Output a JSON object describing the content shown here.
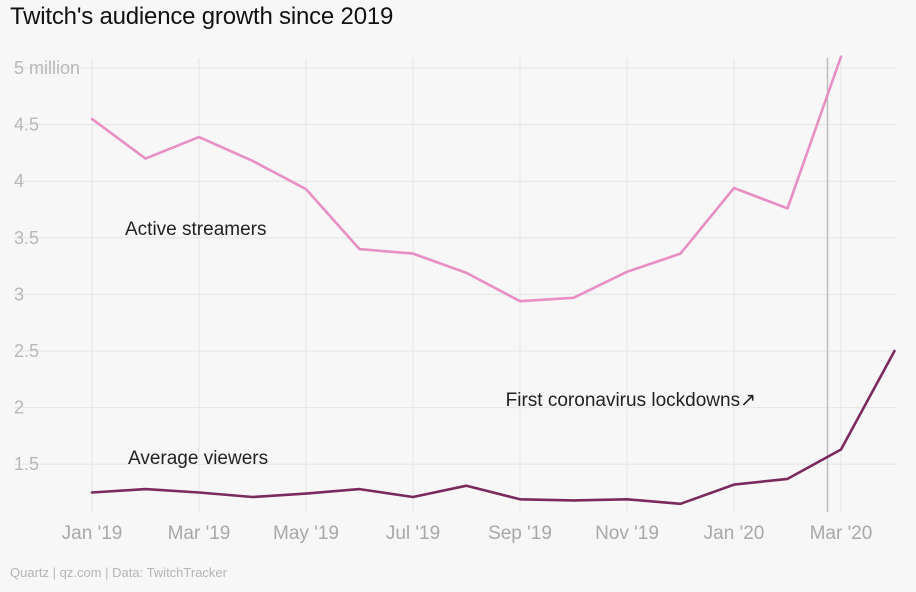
{
  "title": "Twitch's audience growth since 2019",
  "source": "Quartz | qz.com | Data: TwitchTracker",
  "colors": {
    "active_streamers": "#e88fc4",
    "average_viewers": "#7a2a5e",
    "grid": "#e6e6e6",
    "lockdown_line": "#bdbdbd"
  },
  "chart_data": {
    "type": "line",
    "x": [
      "Jan 2019",
      "Feb 2019",
      "Mar 2019",
      "Apr 2019",
      "May 2019",
      "Jun 2019",
      "Jul 2019",
      "Aug 2019",
      "Sep 2019",
      "Oct 2019",
      "Nov 2019",
      "Dec 2019",
      "Jan 2020",
      "Feb 2020",
      "Mar 2020",
      "Apr 2020"
    ],
    "x_ticks": [
      "Jan '19",
      "Mar '19",
      "May '19",
      "Jul '19",
      "Sep '19",
      "Nov '19",
      "Jan '20",
      "Mar '20"
    ],
    "y_ticks": [
      "5 million",
      "4.5",
      "4",
      "3.5",
      "3",
      "2.5",
      "2",
      "1.5"
    ],
    "ylim": [
      1.07,
      5.2
    ],
    "grid": true,
    "series": [
      {
        "name": "Active streamers",
        "values": [
          4.55,
          4.2,
          4.39,
          4.18,
          3.93,
          3.4,
          3.36,
          3.19,
          2.94,
          2.97,
          3.2,
          3.36,
          3.94,
          3.76,
          5.1,
          null
        ]
      },
      {
        "name": "Average viewers",
        "values": [
          1.25,
          1.28,
          1.25,
          1.21,
          1.24,
          1.28,
          1.21,
          1.31,
          1.19,
          1.18,
          1.19,
          1.15,
          1.32,
          1.37,
          1.63,
          2.5
        ]
      }
    ],
    "annotations": [
      {
        "text": "First coronavirus lockdowns↗",
        "x": "Feb 2020",
        "y": 2.05
      }
    ]
  }
}
